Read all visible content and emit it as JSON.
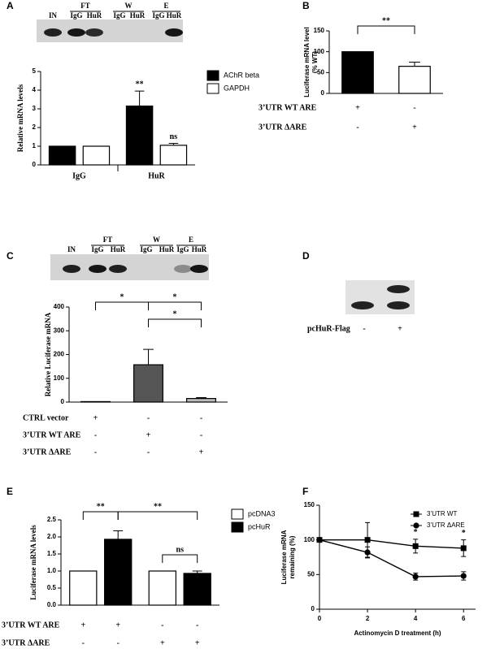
{
  "chart_data": [
    {
      "panel": "A",
      "type": "bar",
      "ylabel": "Relative mRNA levels",
      "categories": [
        "IgG",
        "HuR"
      ],
      "series": [
        {
          "name": "AChR beta",
          "color": "#000000",
          "values": [
            1,
            3.15
          ],
          "errors": [
            0,
            0.8
          ]
        },
        {
          "name": "GAPDH",
          "color": "#ffffff",
          "values": [
            1,
            1.05
          ],
          "errors": [
            0,
            0.1
          ]
        }
      ],
      "ylim": [
        0,
        5
      ],
      "yticks": [
        0,
        1,
        2,
        3,
        4,
        5
      ],
      "annotations": [
        "**",
        "ns"
      ]
    },
    {
      "panel": "B",
      "type": "bar",
      "ylabel": [
        "Luciferase mRNA level",
        "(% WT)"
      ],
      "categories": [
        null,
        null
      ],
      "series": [
        {
          "colors": [
            "#000000",
            "#ffffff"
          ],
          "values": [
            100,
            65
          ],
          "errors": [
            0,
            10
          ]
        }
      ],
      "ylim": [
        0,
        150
      ],
      "yticks": [
        0,
        50,
        100,
        150
      ],
      "conditions": [
        {
          "label": "3’UTR WT ARE",
          "marks": [
            "+",
            "-"
          ]
        },
        {
          "label": "3’UTR ΔARE",
          "marks": [
            "-",
            "+"
          ]
        }
      ],
      "annotations": [
        "**"
      ]
    },
    {
      "panel": "C",
      "type": "bar",
      "ylabel": "Relative Luciferase mRNA",
      "categories": [
        null,
        null,
        null
      ],
      "series": [
        {
          "colors": [
            "#ffffff",
            "#555555",
            "#bbbbbb"
          ],
          "values": [
            2,
            157,
            15
          ],
          "errors": [
            0,
            65,
            4
          ]
        }
      ],
      "ylim": [
        0,
        400
      ],
      "yticks": [
        0,
        100,
        200,
        300,
        400
      ],
      "conditions": [
        {
          "label": "CTRL vector",
          "marks": [
            "+",
            "-",
            "-"
          ]
        },
        {
          "label": "3’UTR WT ARE",
          "marks": [
            "-",
            "+",
            "-"
          ]
        },
        {
          "label": "3’UTR  ΔARE",
          "marks": [
            "-",
            "-",
            "+"
          ]
        }
      ],
      "annotations": [
        "*",
        "*",
        "*"
      ]
    },
    {
      "panel": "E",
      "type": "bar",
      "ylabel": "Luciferase mRNA levels",
      "categories": [
        null,
        null
      ],
      "series": [
        {
          "name": "pcDNA3",
          "color": "#ffffff",
          "values": [
            1,
            1
          ],
          "errors": [
            0,
            0
          ]
        },
        {
          "name": "pcHuR",
          "color": "#000000",
          "values": [
            1.93,
            0.93
          ],
          "errors": [
            0.25,
            0.07
          ]
        }
      ],
      "ylim": [
        0,
        2.5
      ],
      "yticks": [
        {
          "value": 0,
          "label": "0.0"
        },
        {
          "value": 0.5,
          "label": "0.5"
        },
        {
          "value": 1,
          "label": "1.0"
        },
        {
          "value": 1.5,
          "label": "1.5"
        },
        {
          "value": 2,
          "label": "2.0"
        },
        {
          "value": 2.5,
          "label": "2.5"
        }
      ],
      "conditions": [
        {
          "label": "3’UTR WT ARE",
          "marks": [
            "+",
            "+",
            "-",
            "-"
          ]
        },
        {
          "label": "3’UTR ΔARE",
          "marks": [
            "-",
            "-",
            "+",
            "+"
          ]
        }
      ],
      "annotations": [
        "**",
        "**",
        "ns"
      ]
    },
    {
      "panel": "F",
      "type": "line",
      "xlabel": "Actinomycin D treatment (h)",
      "ylabel": [
        "Luciferase mRNA",
        "remaining (%)"
      ],
      "x": [
        0,
        2,
        4,
        6
      ],
      "series": [
        {
          "name": "3’UTR WT",
          "color": "#000000",
          "marker": "square",
          "values": [
            100,
            100,
            91,
            88
          ],
          "errors": [
            0,
            25,
            10,
            12
          ]
        },
        {
          "name": "3’UTR ΔARE",
          "color": "#000000",
          "marker": "circle",
          "values": [
            100,
            82,
            47,
            48
          ],
          "errors": [
            0,
            8,
            5,
            6
          ]
        }
      ],
      "xlim": [
        0,
        6.5
      ],
      "xticks": [
        0,
        2,
        4,
        6
      ],
      "ylim": [
        0,
        150
      ],
      "yticks": [
        0,
        50,
        100,
        150
      ],
      "annotations": [
        "*",
        "*"
      ]
    }
  ],
  "blots": [
    {
      "single": "IN",
      "groups": [
        {
          "name": "FT",
          "lanes": [
            "IgG",
            "HuR"
          ]
        },
        {
          "name": "W",
          "lanes": [
            "IgG",
            "HuR"
          ]
        },
        {
          "name": "E",
          "lanes": [
            "IgG",
            "HuR"
          ]
        }
      ]
    },
    {
      "single": "IN",
      "groups": [
        {
          "name": "FT",
          "lanes": [
            "IgG",
            "HuR"
          ]
        },
        {
          "name": "W",
          "lanes": [
            "IgG",
            "HuR"
          ]
        },
        {
          "name": "E",
          "lanes": [
            "IgG",
            "HuR"
          ]
        }
      ]
    },
    {
      "panel": "D",
      "label": "pcHuR-Flag",
      "marks": [
        "-",
        "+"
      ]
    }
  ]
}
